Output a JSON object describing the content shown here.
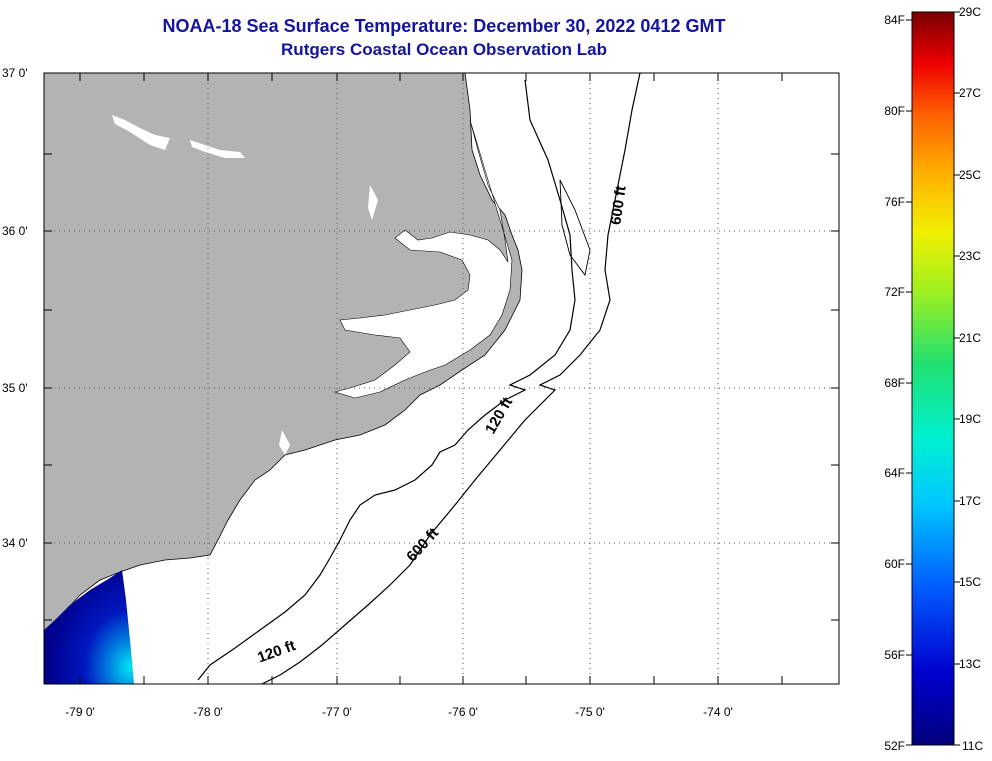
{
  "header": {
    "title": "NOAA-18 Sea Surface Temperature:  December 30, 2022 0412 GMT",
    "subtitle": "Rutgers Coastal Ocean Observation Lab"
  },
  "map": {
    "lat_labels": [
      "37 0'",
      "36 0'",
      "35 0'",
      "34 0'"
    ],
    "lon_labels": [
      "-79 0'",
      "-78 0'",
      "-77 0'",
      "-76 0'",
      "-75 0'",
      "-74 0'"
    ],
    "contours": [
      "120 ft",
      "600 ft",
      "120 ft",
      "600 ft"
    ],
    "colors": {
      "land": "#b3b3b3",
      "water_fill": "#ffffff",
      "sst_cold": "#00008c",
      "sst_warm": "#00e6f0"
    }
  },
  "colorbar": {
    "fahrenheit": [
      "84F",
      "80F",
      "76F",
      "72F",
      "68F",
      "64F",
      "60F",
      "56F",
      "52F"
    ],
    "celsius": [
      "29C",
      "27C",
      "25C",
      "23C",
      "21C",
      "19C",
      "17C",
      "15C",
      "13C",
      "11C"
    ]
  }
}
